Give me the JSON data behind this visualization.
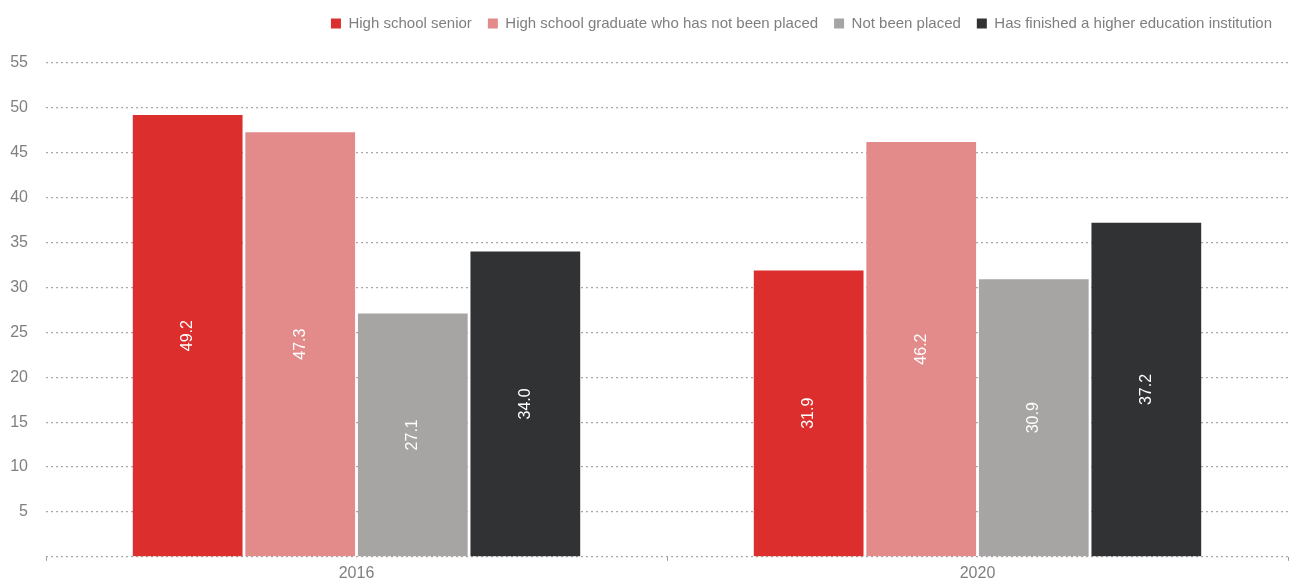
{
  "chart_data": {
    "type": "bar",
    "categories": [
      "2016",
      "2020"
    ],
    "series": [
      {
        "name": "High school senior",
        "color": "#db2e2d",
        "values": [
          49.2,
          31.9
        ],
        "value_labels": [
          "49.2",
          "31.9"
        ]
      },
      {
        "name": "High school graduate who has not been placed",
        "color": "#e38a8a",
        "values": [
          47.3,
          46.2
        ],
        "value_labels": [
          "47.3",
          "46.2"
        ]
      },
      {
        "name": "Not been placed",
        "color": "#a6a5a4",
        "values": [
          27.1,
          30.9
        ],
        "value_labels": [
          "27.1",
          "30.9"
        ]
      },
      {
        "name": "Has finished a higher education institution",
        "color": "#313234",
        "values": [
          34.0,
          37.2
        ],
        "value_labels": [
          "34.0",
          "37.2"
        ]
      }
    ],
    "ylim": [
      0,
      55
    ],
    "yticks": [
      {
        "value": 0,
        "label": null
      },
      5,
      10,
      15,
      20,
      25,
      30,
      35,
      40,
      45,
      50,
      55
    ],
    "grid": "y",
    "legend": "top right"
  }
}
